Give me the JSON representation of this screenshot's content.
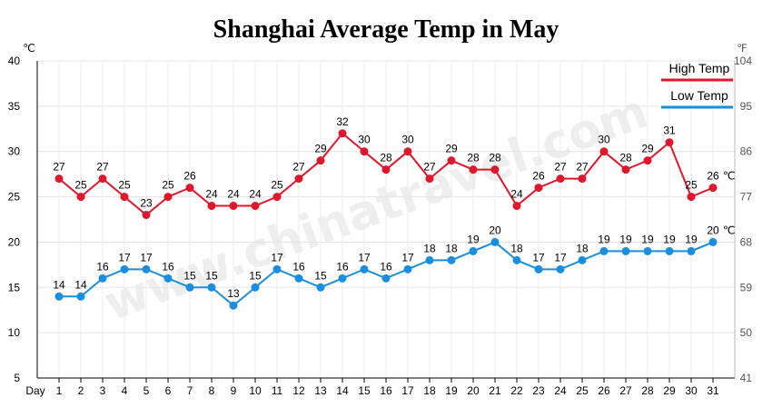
{
  "chart_data": {
    "type": "line",
    "title": "Shanghai Average Temp in May",
    "xlabel": "Day",
    "y_unit_left": "℃",
    "y_unit_right": "℉",
    "end_unit_label": "℃",
    "watermark": "www.chinatravel.com",
    "x": [
      1,
      2,
      3,
      4,
      5,
      6,
      7,
      8,
      9,
      10,
      11,
      12,
      13,
      14,
      15,
      16,
      17,
      18,
      19,
      20,
      21,
      22,
      23,
      24,
      25,
      26,
      27,
      28,
      29,
      30,
      31
    ],
    "ylim": [
      5,
      40
    ],
    "y_ticks": [
      5,
      10,
      15,
      20,
      25,
      30,
      35,
      40
    ],
    "y2_ticks": [
      41,
      50,
      59,
      68,
      77,
      86,
      95,
      104
    ],
    "grid": true,
    "legend_position": "top-right",
    "series": [
      {
        "name": "High Temp",
        "color": "#e2162b",
        "values": [
          27,
          25,
          27,
          25,
          23,
          25,
          26,
          24,
          24,
          24,
          25,
          27,
          29,
          32,
          30,
          28,
          30,
          27,
          29,
          28,
          28,
          24,
          26,
          27,
          27,
          30,
          28,
          29,
          31,
          25,
          26
        ]
      },
      {
        "name": "Low Temp",
        "color": "#1a8ede",
        "values": [
          14,
          14,
          16,
          17,
          17,
          16,
          15,
          15,
          13,
          15,
          17,
          16,
          15,
          16,
          17,
          16,
          17,
          18,
          18,
          19,
          20,
          18,
          17,
          17,
          18,
          19,
          19,
          19,
          19,
          19,
          20
        ]
      }
    ]
  }
}
